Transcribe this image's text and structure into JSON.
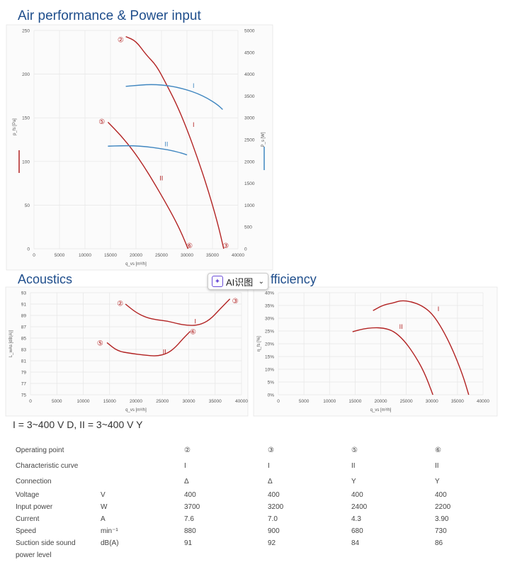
{
  "titles": {
    "air": "Air performance & Power input",
    "acoustics": "Acoustics",
    "efficiency": "fficiency"
  },
  "ai_button": {
    "label": "AI识图",
    "icon": "sparkle-icon",
    "chevron": "⌄"
  },
  "legend_text": "I = 3~400 V D, II = 3~400 V Y",
  "colors": {
    "red": "#b22222",
    "blue": "#3f86c0",
    "title": "#1f4e8c"
  },
  "chart_data": [
    {
      "type": "line",
      "xlabel": "q_vs [m³/h]",
      "ylabel": "p_fs [Pa]",
      "y2label": "P_s [W]",
      "x_ticks": [
        0,
        5000,
        10000,
        15000,
        20000,
        25000,
        30000,
        35000,
        40000
      ],
      "y_ticks": [
        0,
        50,
        100,
        150,
        200,
        250
      ],
      "y2_ticks": [
        "0",
        "500",
        "1000",
        "1500",
        "2000",
        "2500",
        "3000",
        "3500",
        "4000",
        "4500",
        "5000"
      ],
      "xlim": [
        0,
        40000
      ],
      "ylim": [
        0,
        250
      ],
      "y2lim": [
        0,
        5000
      ],
      "grid": true,
      "series": [
        {
          "label": "I",
          "axis": "left",
          "color": "red",
          "x": [
            18000,
            20000,
            22000,
            24000,
            26000,
            28000,
            30000,
            32000,
            34000,
            36000,
            37200
          ],
          "y": [
            243,
            238,
            222,
            210,
            188,
            165,
            137,
            105,
            70,
            30,
            0
          ]
        },
        {
          "label": "II",
          "axis": "left",
          "color": "red",
          "x": [
            14500,
            17000,
            19500,
            21500,
            23500,
            25500,
            27500,
            29000,
            30200
          ],
          "y": [
            145,
            130,
            112,
            95,
            76,
            56,
            35,
            17,
            0
          ]
        },
        {
          "label": "I",
          "axis": "right",
          "color": "blue",
          "x": [
            18000,
            20000,
            22000,
            24000,
            26000,
            28000,
            30000,
            32000,
            34000,
            36000,
            37000
          ],
          "y": [
            3720,
            3740,
            3760,
            3760,
            3740,
            3700,
            3640,
            3560,
            3450,
            3300,
            3190
          ]
        },
        {
          "label": "II",
          "axis": "right",
          "color": "blue",
          "x": [
            14500,
            17000,
            19500,
            22000,
            24500,
            27000,
            29000,
            30000
          ],
          "y": [
            2350,
            2360,
            2360,
            2340,
            2300,
            2250,
            2190,
            2150
          ]
        }
      ],
      "markers": [
        {
          "label": "②",
          "x": 17000,
          "y": 240
        },
        {
          "label": "⑤",
          "x": 13300,
          "y": 146
        },
        {
          "label": "⑥",
          "x": 30500,
          "y": 4
        },
        {
          "label": "③",
          "x": 37600,
          "y": 4
        }
      ]
    },
    {
      "type": "line",
      "xlabel": "q_vs [m³/h]",
      "ylabel": "L_wAs [dB(A)]",
      "x_ticks": [
        0,
        5000,
        10000,
        15000,
        20000,
        25000,
        30000,
        35000,
        40000
      ],
      "y_ticks": [
        75,
        77,
        79,
        81,
        83,
        85,
        87,
        89,
        91,
        93
      ],
      "xlim": [
        0,
        40000
      ],
      "ylim": [
        75,
        93
      ],
      "grid": true,
      "series": [
        {
          "label": "I",
          "color": "red",
          "x": [
            18000,
            20000,
            22000,
            24000,
            26000,
            28000,
            30000,
            32000,
            34000,
            36000,
            37800
          ],
          "y": [
            91,
            89.5,
            88.6,
            88.2,
            88.0,
            87.5,
            87.2,
            87.3,
            88.2,
            90.2,
            91.9
          ]
        },
        {
          "label": "II",
          "color": "red",
          "x": [
            14500,
            16500,
            19000,
            21500,
            24000,
            26000,
            27500,
            29000,
            30300
          ],
          "y": [
            84.2,
            82.7,
            82.3,
            82.0,
            81.8,
            82.3,
            83.4,
            85.0,
            86.2
          ]
        }
      ],
      "markers": [
        {
          "label": "②",
          "x": 17000,
          "y": 91.2
        },
        {
          "label": "③",
          "x": 38800,
          "y": 91.6
        },
        {
          "label": "⑤",
          "x": 13200,
          "y": 84.2
        },
        {
          "label": "⑥",
          "x": 30800,
          "y": 86.2
        }
      ]
    },
    {
      "type": "line",
      "xlabel": "q_vs [m³/h]",
      "ylabel": "η_fs [%]",
      "x_ticks": [
        0,
        5000,
        10000,
        15000,
        20000,
        25000,
        30000,
        35000,
        40000
      ],
      "y_ticks": [
        "0%",
        "5%",
        "10%",
        "15%",
        "20%",
        "25%",
        "30%",
        "35%",
        "40%"
      ],
      "xlim": [
        0,
        40000
      ],
      "ylim": [
        0,
        40
      ],
      "grid": true,
      "series": [
        {
          "label": "I",
          "color": "red",
          "x": [
            18500,
            20500,
            22500,
            24000,
            26000,
            28000,
            30000,
            32000,
            34000,
            36000,
            37200
          ],
          "y": [
            33,
            35.2,
            36,
            37,
            36.5,
            35,
            32,
            26,
            18,
            8,
            0
          ]
        },
        {
          "label": "II",
          "color": "red",
          "x": [
            14500,
            16500,
            18500,
            20500,
            22500,
            24500,
            26500,
            28500,
            30200
          ],
          "y": [
            24.7,
            25.8,
            26.3,
            26.2,
            25,
            21.5,
            16,
            9,
            0
          ]
        }
      ]
    }
  ],
  "table": {
    "rows": [
      {
        "label": "Operating point",
        "unit": "",
        "values": [
          "②",
          "③",
          "⑤",
          "⑥"
        ]
      },
      {
        "label": "Characteristic curve",
        "unit": "",
        "values": [
          "I",
          "I",
          "II",
          "II"
        ]
      },
      {
        "label": "Connection",
        "unit": "",
        "values": [
          "Δ",
          "Δ",
          "Y",
          "Y"
        ]
      },
      {
        "label": "Voltage",
        "unit": "V",
        "values": [
          "400",
          "400",
          "400",
          "400"
        ]
      },
      {
        "label": "Input power",
        "unit": "W",
        "values": [
          "3700",
          "3200",
          "2400",
          "2200"
        ]
      },
      {
        "label": "Current",
        "unit": "A",
        "values": [
          "7.6",
          "7.0",
          "4.3",
          "3.90"
        ]
      },
      {
        "label": "Speed",
        "unit": "min⁻¹",
        "values": [
          "880",
          "900",
          "680",
          "730"
        ]
      },
      {
        "label": "Suction side sound",
        "unit": "dB(A)",
        "values": [
          "91",
          "92",
          "84",
          "86"
        ]
      },
      {
        "label": "power level",
        "unit": "",
        "values": [
          "",
          "",
          "",
          ""
        ]
      }
    ]
  }
}
